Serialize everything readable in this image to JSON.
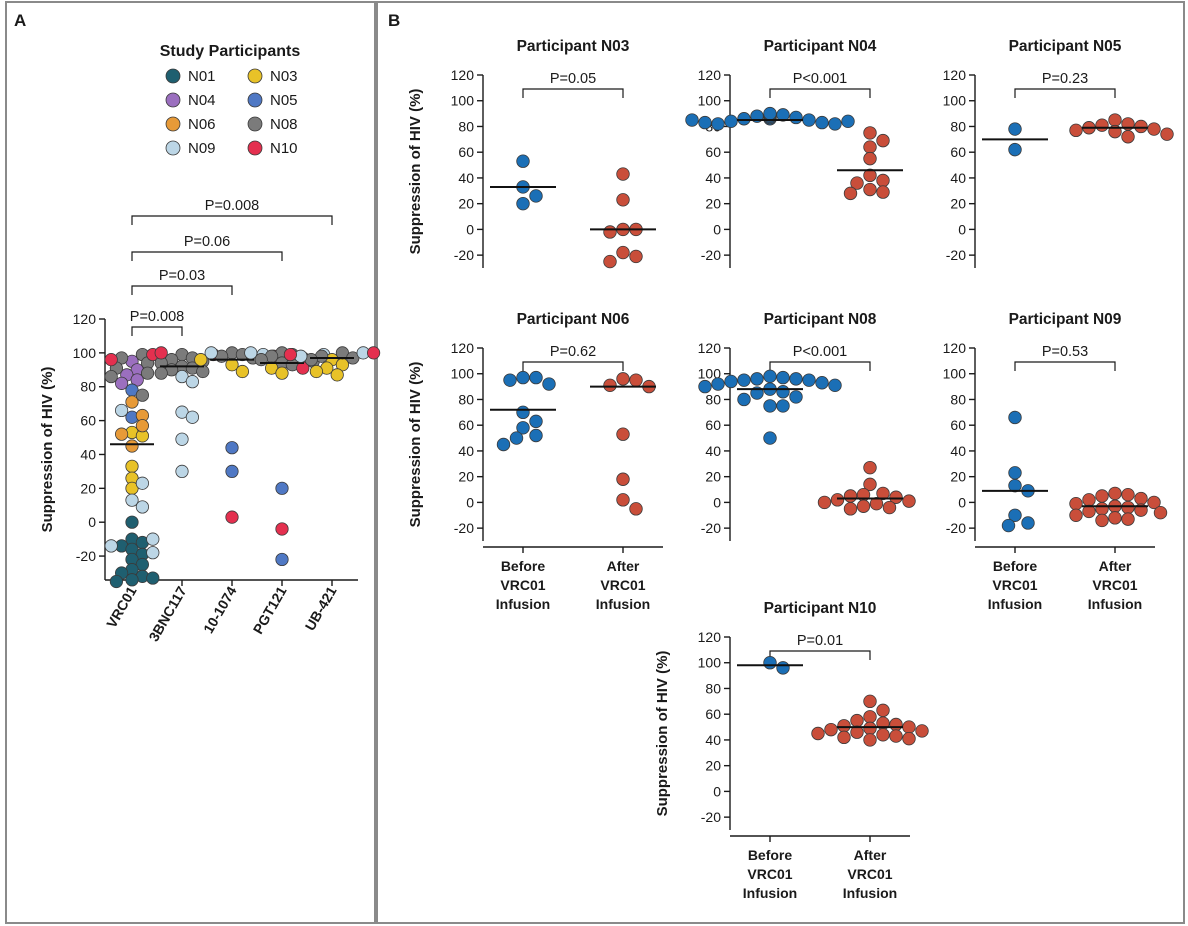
{
  "colors": {
    "N01": "#1f5f70",
    "N03": "#e8c228",
    "N04": "#9b6fbf",
    "N05": "#4f78c4",
    "N06": "#e79a38",
    "N08": "#7b7b7b",
    "N09": "#bcd6e6",
    "N10": "#e4304f",
    "before": "#1b6fb6",
    "after": "#c94e3a"
  },
  "panelA": {
    "letter": "A",
    "legend_title": "Study Participants",
    "legend": [
      {
        "name": "N01",
        "color": "#1f5f70"
      },
      {
        "name": "N03",
        "color": "#e8c228"
      },
      {
        "name": "N04",
        "color": "#9b6fbf"
      },
      {
        "name": "N05",
        "color": "#4f78c4"
      },
      {
        "name": "N06",
        "color": "#e79a38"
      },
      {
        "name": "N08",
        "color": "#7b7b7b"
      },
      {
        "name": "N09",
        "color": "#bcd6e6"
      },
      {
        "name": "N10",
        "color": "#e4304f"
      }
    ],
    "ylabel": "Suppression of HIV (%)",
    "pvalues": [
      "P=0.008",
      "P=0.03",
      "P=0.06",
      "P=0.008"
    ]
  },
  "panelB": {
    "letter": "B",
    "ylabel": "Suppression of HIV (%)",
    "before_label": [
      "Before",
      "VRC01",
      "Infusion"
    ],
    "after_label": [
      "After",
      "VRC01",
      "Infusion"
    ]
  },
  "chart_data": [
    {
      "panel": "A",
      "type": "scatter",
      "ylabel": "Suppression of HIV (%)",
      "ylim": [
        -30,
        120
      ],
      "yticks": [
        -20,
        0,
        20,
        40,
        60,
        80,
        100,
        120
      ],
      "categories": [
        "VRC01",
        "3BNC117",
        "10-1074",
        "PGT121",
        "UB-421"
      ],
      "medians": [
        46,
        92,
        96,
        94,
        97
      ],
      "comparisons": [
        {
          "from": "VRC01",
          "to": "3BNC117",
          "p": "P=0.008"
        },
        {
          "from": "VRC01",
          "to": "10-1074",
          "p": "P=0.03"
        },
        {
          "from": "VRC01",
          "to": "PGT121",
          "p": "P=0.06"
        },
        {
          "from": "VRC01",
          "to": "UB-421",
          "p": "P=0.008"
        }
      ],
      "series": [
        {
          "name": "VRC01",
          "points": [
            {
              "p": "N01",
              "v": 0
            },
            {
              "p": "N01",
              "v": -10
            },
            {
              "p": "N01",
              "v": -12
            },
            {
              "p": "N01",
              "v": -14
            },
            {
              "p": "N01",
              "v": -16
            },
            {
              "p": "N01",
              "v": -19
            },
            {
              "p": "N01",
              "v": -22
            },
            {
              "p": "N01",
              "v": -25
            },
            {
              "p": "N01",
              "v": -28
            },
            {
              "p": "N01",
              "v": -30
            },
            {
              "p": "N01",
              "v": -32
            },
            {
              "p": "N01",
              "v": -33
            },
            {
              "p": "N01",
              "v": -34
            },
            {
              "p": "N01",
              "v": -35
            },
            {
              "p": "N03",
              "v": 53
            },
            {
              "p": "N03",
              "v": 51
            },
            {
              "p": "N03",
              "v": 33
            },
            {
              "p": "N03",
              "v": 26
            },
            {
              "p": "N03",
              "v": 20
            },
            {
              "p": "N04",
              "v": 95
            },
            {
              "p": "N04",
              "v": 90
            },
            {
              "p": "N04",
              "v": 87
            },
            {
              "p": "N04",
              "v": 84
            },
            {
              "p": "N04",
              "v": 82
            },
            {
              "p": "N05",
              "v": 78
            },
            {
              "p": "N05",
              "v": 62
            },
            {
              "p": "N06",
              "v": 71
            },
            {
              "p": "N06",
              "v": 63
            },
            {
              "p": "N06",
              "v": 57
            },
            {
              "p": "N06",
              "v": 52
            },
            {
              "p": "N06",
              "v": 45
            },
            {
              "p": "N08",
              "v": 99
            },
            {
              "p": "N08",
              "v": 97
            },
            {
              "p": "N08",
              "v": 94
            },
            {
              "p": "N08",
              "v": 91
            },
            {
              "p": "N08",
              "v": 88
            },
            {
              "p": "N08",
              "v": 86
            },
            {
              "p": "N08",
              "v": 75
            },
            {
              "p": "N09",
              "v": 66
            },
            {
              "p": "N09",
              "v": 23
            },
            {
              "p": "N09",
              "v": 13
            },
            {
              "p": "N09",
              "v": 9
            },
            {
              "p": "N09",
              "v": -10
            },
            {
              "p": "N09",
              "v": -14
            },
            {
              "p": "N09",
              "v": -18
            },
            {
              "p": "N10",
              "v": 99
            },
            {
              "p": "N10",
              "v": 96
            }
          ]
        },
        {
          "name": "3BNC117",
          "points": [
            {
              "p": "N08",
              "v": 99
            },
            {
              "p": "N08",
              "v": 97
            },
            {
              "p": "N08",
              "v": 96
            },
            {
              "p": "N08",
              "v": 95
            },
            {
              "p": "N08",
              "v": 94
            },
            {
              "p": "N08",
              "v": 92
            },
            {
              "p": "N08",
              "v": 91
            },
            {
              "p": "N08",
              "v": 90
            },
            {
              "p": "N08",
              "v": 89
            },
            {
              "p": "N08",
              "v": 88
            },
            {
              "p": "N09",
              "v": 86
            },
            {
              "p": "N09",
              "v": 83
            },
            {
              "p": "N09",
              "v": 65
            },
            {
              "p": "N09",
              "v": 62
            },
            {
              "p": "N09",
              "v": 49
            },
            {
              "p": "N09",
              "v": 30
            },
            {
              "p": "N10",
              "v": 100
            },
            {
              "p": "N10",
              "v": 99
            }
          ]
        },
        {
          "name": "10-1074",
          "points": [
            {
              "p": "N08",
              "v": 100
            },
            {
              "p": "N08",
              "v": 99
            },
            {
              "p": "N08",
              "v": 98
            },
            {
              "p": "N08",
              "v": 97
            },
            {
              "p": "N09",
              "v": 100
            },
            {
              "p": "N09",
              "v": 99
            },
            {
              "p": "N03",
              "v": 96
            },
            {
              "p": "N03",
              "v": 93
            },
            {
              "p": "N03",
              "v": 89
            },
            {
              "p": "N05",
              "v": 44
            },
            {
              "p": "N05",
              "v": 30
            },
            {
              "p": "N10",
              "v": 98
            },
            {
              "p": "N10",
              "v": 3
            }
          ]
        },
        {
          "name": "PGT121",
          "points": [
            {
              "p": "N08",
              "v": 100
            },
            {
              "p": "N08",
              "v": 99
            },
            {
              "p": "N08",
              "v": 98
            },
            {
              "p": "N08",
              "v": 97
            },
            {
              "p": "N08",
              "v": 96
            },
            {
              "p": "N08",
              "v": 95
            },
            {
              "p": "N08",
              "v": 94
            },
            {
              "p": "N08",
              "v": 93
            },
            {
              "p": "N09",
              "v": 100
            },
            {
              "p": "N09",
              "v": 99
            },
            {
              "p": "N03",
              "v": 91
            },
            {
              "p": "N03",
              "v": 88
            },
            {
              "p": "N05",
              "v": 20
            },
            {
              "p": "N05",
              "v": -22
            },
            {
              "p": "N10",
              "v": 91
            },
            {
              "p": "N10",
              "v": -4
            }
          ]
        },
        {
          "name": "UB-421",
          "points": [
            {
              "p": "N03",
              "v": 96
            },
            {
              "p": "N03",
              "v": 93
            },
            {
              "p": "N03",
              "v": 91
            },
            {
              "p": "N03",
              "v": 89
            },
            {
              "p": "N03",
              "v": 87
            },
            {
              "p": "N08",
              "v": 100
            },
            {
              "p": "N08",
              "v": 98
            },
            {
              "p": "N08",
              "v": 97
            },
            {
              "p": "N08",
              "v": 96
            },
            {
              "p": "N09",
              "v": 100
            },
            {
              "p": "N09",
              "v": 98
            },
            {
              "p": "N10",
              "v": 100
            },
            {
              "p": "N10",
              "v": 99
            }
          ]
        }
      ]
    },
    {
      "panel": "B",
      "type": "scatter",
      "title": "Participant N03",
      "p": "P=0.05",
      "ylabel": "Suppression of HIV (%)",
      "ylim": [
        -30,
        120
      ],
      "yticks": [
        -20,
        0,
        20,
        40,
        60,
        80,
        100,
        120
      ],
      "categories": [
        "Before VRC01 Infusion",
        "After VRC01 Infusion"
      ],
      "before": [
        53,
        33,
        26,
        20
      ],
      "after": [
        43,
        23,
        0,
        0,
        -2,
        -18,
        -21,
        -25
      ],
      "median_before": 33,
      "median_after": 0
    },
    {
      "panel": "B",
      "type": "scatter",
      "title": "Participant N04",
      "p": "P<0.001",
      "ylabel": "Suppression of HIV (%)",
      "ylim": [
        -30,
        120
      ],
      "yticks": [
        -20,
        0,
        20,
        40,
        60,
        80,
        100,
        120
      ],
      "categories": [
        "Before VRC01 Infusion",
        "After VRC01 Infusion"
      ],
      "before": [
        89,
        89,
        88,
        87,
        86,
        85,
        84,
        83,
        82,
        82,
        83,
        84,
        85,
        86,
        87,
        88,
        89,
        90
      ],
      "after": [
        75,
        69,
        64,
        55,
        42,
        38,
        36,
        31,
        29,
        28
      ],
      "median_before": 85,
      "median_after": 46
    },
    {
      "panel": "B",
      "type": "scatter",
      "title": "Participant N05",
      "p": "P=0.23",
      "ylabel": "Suppression of HIV (%)",
      "ylim": [
        -30,
        120
      ],
      "yticks": [
        -20,
        0,
        20,
        40,
        60,
        80,
        100,
        120
      ],
      "categories": [
        "Before VRC01 Infusion",
        "After VRC01 Infusion"
      ],
      "before": [
        78,
        62
      ],
      "after": [
        85,
        82,
        81,
        80,
        79,
        78,
        77,
        76,
        74,
        72
      ],
      "median_before": 70,
      "median_after": 79
    },
    {
      "panel": "B",
      "type": "scatter",
      "title": "Participant N06",
      "p": "P=0.62",
      "ylabel": "Suppression of HIV (%)",
      "ylim": [
        -30,
        120
      ],
      "yticks": [
        -20,
        0,
        20,
        40,
        60,
        80,
        100,
        120
      ],
      "categories": [
        "Before VRC01 Infusion",
        "After VRC01 Infusion"
      ],
      "before": [
        97,
        97,
        95,
        92,
        70,
        63,
        58,
        52,
        50,
        45
      ],
      "after": [
        96,
        95,
        91,
        90,
        53,
        18,
        2,
        -5
      ],
      "median_before": 72,
      "median_after": 90
    },
    {
      "panel": "B",
      "type": "scatter",
      "title": "Participant N08",
      "p": "P<0.001",
      "ylabel": "Suppression of HIV (%)",
      "ylim": [
        -30,
        120
      ],
      "yticks": [
        -20,
        0,
        20,
        40,
        60,
        80,
        100,
        120
      ],
      "categories": [
        "Before VRC01 Infusion",
        "After VRC01 Infusion"
      ],
      "before": [
        98,
        97,
        96,
        96,
        95,
        95,
        94,
        93,
        92,
        91,
        90,
        88,
        86,
        85,
        82,
        80,
        75,
        75,
        50
      ],
      "after": [
        27,
        14,
        7,
        6,
        5,
        4,
        2,
        1,
        0,
        -1,
        -3,
        -4,
        -5
      ],
      "median_before": 88,
      "median_after": 3
    },
    {
      "panel": "B",
      "type": "scatter",
      "title": "Participant N09",
      "p": "P=0.53",
      "ylabel": "Suppression of HIV (%)",
      "ylim": [
        -30,
        120
      ],
      "yticks": [
        -20,
        0,
        20,
        40,
        60,
        80,
        100,
        120
      ],
      "categories": [
        "Before VRC01 Infusion",
        "After VRC01 Infusion"
      ],
      "before": [
        66,
        23,
        13,
        9,
        -10,
        -16,
        -18
      ],
      "after": [
        7,
        6,
        5,
        3,
        2,
        0,
        -1,
        -3,
        -4,
        -5,
        -6,
        -7,
        -8,
        -10,
        -12,
        -13,
        -14
      ],
      "median_before": 9,
      "median_after": -3
    },
    {
      "panel": "B",
      "type": "scatter",
      "title": "Participant N10",
      "p": "P=0.01",
      "ylabel": "Suppression of HIV (%)",
      "ylim": [
        -30,
        120
      ],
      "yticks": [
        -20,
        0,
        20,
        40,
        60,
        80,
        100,
        120
      ],
      "categories": [
        "Before VRC01 Infusion",
        "After VRC01 Infusion"
      ],
      "before": [
        100,
        96
      ],
      "after": [
        70,
        63,
        58,
        55,
        53,
        52,
        51,
        50,
        49,
        48,
        47,
        46,
        45,
        44,
        43,
        42,
        41,
        40
      ],
      "median_before": 98,
      "median_after": 50
    }
  ]
}
